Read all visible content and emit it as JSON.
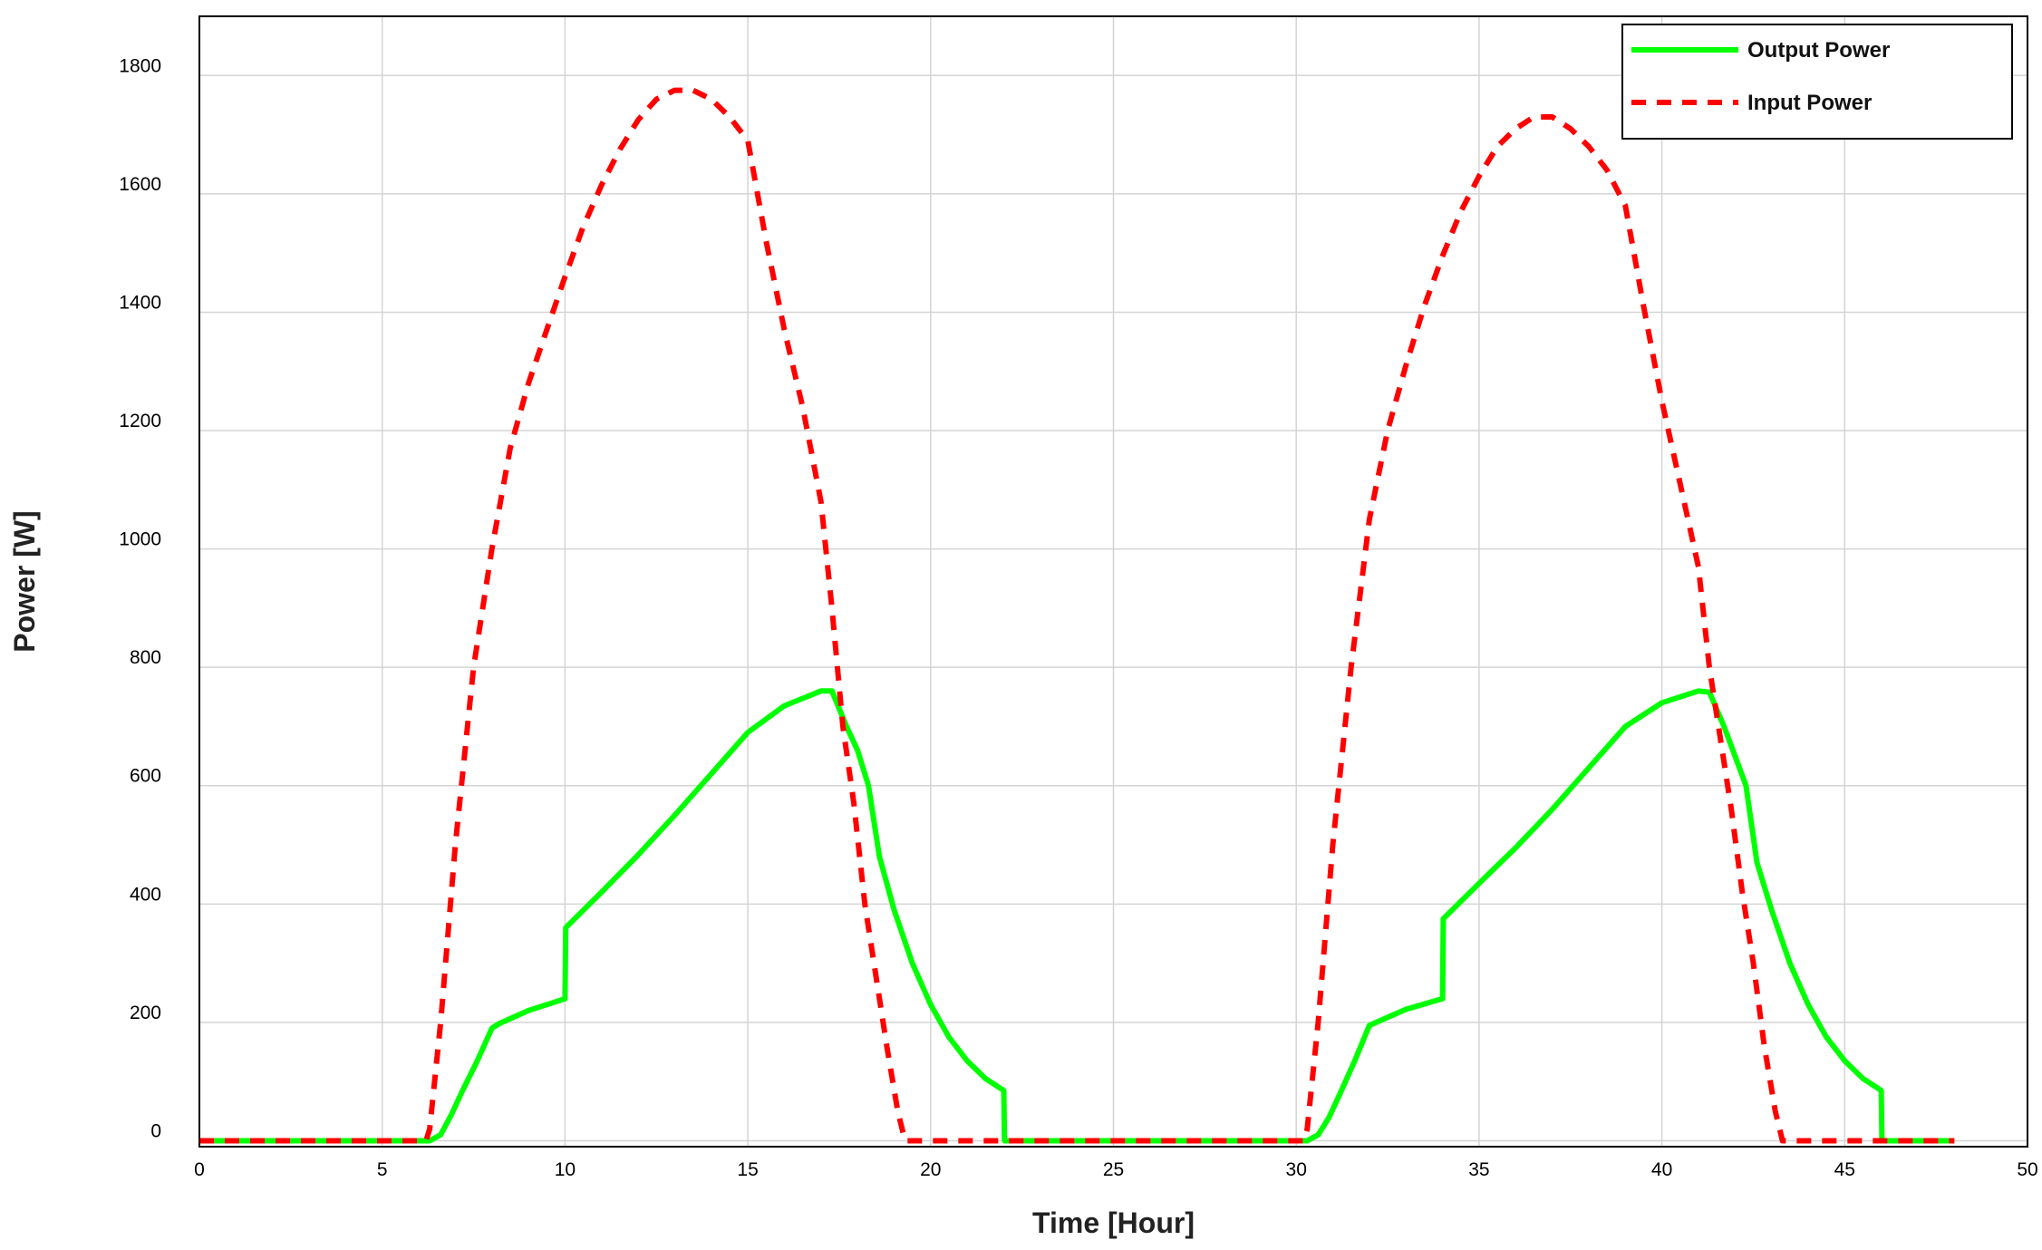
{
  "chart_data": {
    "type": "line",
    "title": "",
    "xlabel": "Time [Hour]",
    "ylabel": "Power [W]",
    "xlim": [
      0,
      50
    ],
    "ylim": [
      -10,
      1900
    ],
    "xticks": [
      0,
      5,
      10,
      15,
      20,
      25,
      30,
      35,
      40,
      45,
      50
    ],
    "yticks": [
      0,
      200,
      400,
      600,
      800,
      1000,
      1200,
      1400,
      1600,
      1800
    ],
    "grid": true,
    "legend_position": "top-right",
    "series": [
      {
        "name": "Output Power",
        "color": "#00ff00",
        "style": "solid",
        "points": [
          [
            0,
            0
          ],
          [
            6,
            0
          ],
          [
            6.3,
            0
          ],
          [
            6.6,
            10
          ],
          [
            6.9,
            45
          ],
          [
            7.2,
            85
          ],
          [
            7.6,
            135
          ],
          [
            8,
            190
          ],
          [
            8.2,
            198
          ],
          [
            9,
            220
          ],
          [
            10,
            240
          ],
          [
            10.02,
            360
          ],
          [
            11,
            420
          ],
          [
            12,
            483
          ],
          [
            13,
            550
          ],
          [
            14,
            620
          ],
          [
            15,
            690
          ],
          [
            16,
            735
          ],
          [
            17,
            760
          ],
          [
            17.3,
            760
          ],
          [
            17.7,
            700
          ],
          [
            18,
            660
          ],
          [
            18.3,
            600
          ],
          [
            18.6,
            480
          ],
          [
            19,
            390
          ],
          [
            19.5,
            300
          ],
          [
            20,
            230
          ],
          [
            20.5,
            175
          ],
          [
            21,
            135
          ],
          [
            21.5,
            105
          ],
          [
            22,
            85
          ],
          [
            22.02,
            0
          ],
          [
            30,
            0
          ],
          [
            30.3,
            0
          ],
          [
            30.6,
            10
          ],
          [
            30.9,
            40
          ],
          [
            31.2,
            80
          ],
          [
            31.6,
            135
          ],
          [
            32,
            195
          ],
          [
            32.3,
            203
          ],
          [
            33,
            222
          ],
          [
            34,
            240
          ],
          [
            34.02,
            375
          ],
          [
            35,
            435
          ],
          [
            36,
            495
          ],
          [
            37,
            560
          ],
          [
            38,
            630
          ],
          [
            39,
            700
          ],
          [
            40,
            740
          ],
          [
            41,
            760
          ],
          [
            41.3,
            758
          ],
          [
            41.7,
            700
          ],
          [
            42,
            650
          ],
          [
            42.3,
            600
          ],
          [
            42.6,
            470
          ],
          [
            43,
            390
          ],
          [
            43.5,
            300
          ],
          [
            44,
            230
          ],
          [
            44.5,
            175
          ],
          [
            45,
            135
          ],
          [
            45.5,
            105
          ],
          [
            46,
            85
          ],
          [
            46.02,
            0
          ],
          [
            48,
            0
          ]
        ]
      },
      {
        "name": "Input Power",
        "color": "#ff0000",
        "style": "dashed",
        "points": [
          [
            0,
            0
          ],
          [
            6.2,
            0
          ],
          [
            6.3,
            20
          ],
          [
            6.6,
            200
          ],
          [
            7,
            500
          ],
          [
            7.5,
            800
          ],
          [
            8,
            1000
          ],
          [
            8.5,
            1170
          ],
          [
            9,
            1280
          ],
          [
            9.5,
            1370
          ],
          [
            10,
            1460
          ],
          [
            10.5,
            1545
          ],
          [
            11,
            1615
          ],
          [
            11.5,
            1675
          ],
          [
            12,
            1725
          ],
          [
            12.5,
            1760
          ],
          [
            13,
            1775
          ],
          [
            13.5,
            1775
          ],
          [
            14,
            1760
          ],
          [
            14.5,
            1730
          ],
          [
            15,
            1690
          ],
          [
            15.5,
            1520
          ],
          [
            16,
            1370
          ],
          [
            16.5,
            1240
          ],
          [
            17,
            1080
          ],
          [
            17.3,
            900
          ],
          [
            17.6,
            700
          ],
          [
            17.9,
            570
          ],
          [
            18.2,
            400
          ],
          [
            18.5,
            280
          ],
          [
            18.8,
            160
          ],
          [
            19.1,
            50
          ],
          [
            19.3,
            0
          ],
          [
            30.2,
            0
          ],
          [
            30.3,
            20
          ],
          [
            30.6,
            200
          ],
          [
            31,
            500
          ],
          [
            31.5,
            800
          ],
          [
            32,
            1050
          ],
          [
            32.5,
            1200
          ],
          [
            33,
            1310
          ],
          [
            33.5,
            1410
          ],
          [
            34,
            1495
          ],
          [
            34.5,
            1570
          ],
          [
            35,
            1630
          ],
          [
            35.5,
            1680
          ],
          [
            36,
            1710
          ],
          [
            36.5,
            1730
          ],
          [
            37,
            1730
          ],
          [
            37.5,
            1710
          ],
          [
            38,
            1680
          ],
          [
            38.5,
            1640
          ],
          [
            39,
            1580
          ],
          [
            39.5,
            1410
          ],
          [
            40,
            1250
          ],
          [
            40.5,
            1110
          ],
          [
            41,
            970
          ],
          [
            41.3,
            800
          ],
          [
            41.6,
            680
          ],
          [
            41.9,
            560
          ],
          [
            42.2,
            420
          ],
          [
            42.5,
            300
          ],
          [
            42.8,
            160
          ],
          [
            43.1,
            50
          ],
          [
            43.3,
            0
          ],
          [
            48,
            0
          ]
        ]
      }
    ]
  }
}
